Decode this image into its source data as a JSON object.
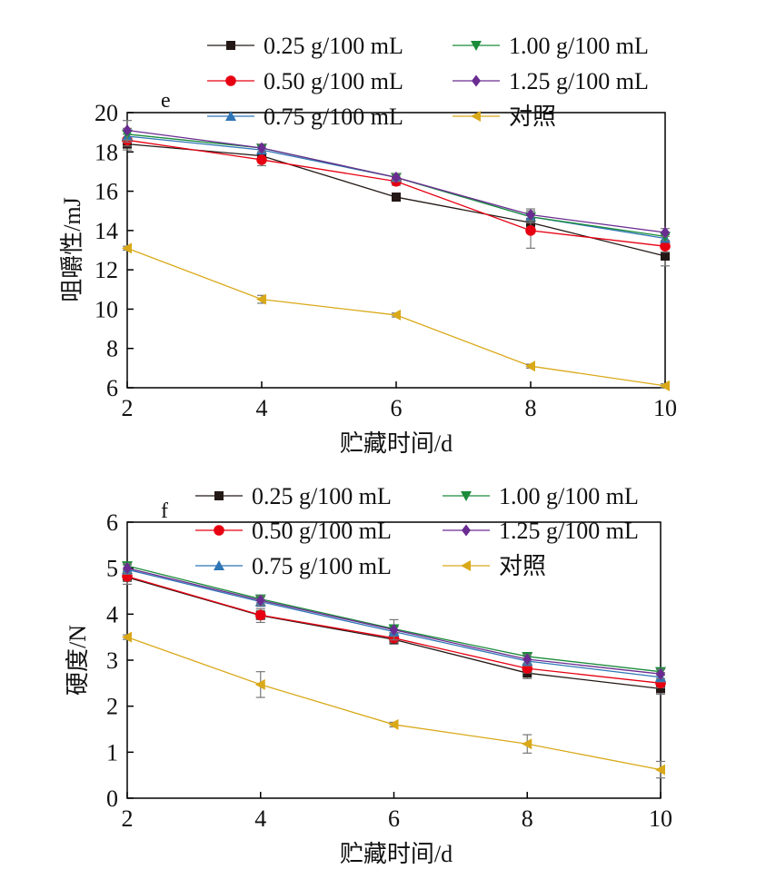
{
  "chart_data": [
    {
      "type": "line",
      "panel_letter": "e",
      "xlabel": "贮藏时间/d",
      "ylabel": "咀嚼性/mJ",
      "x": [
        2,
        4,
        6,
        8,
        10
      ],
      "xlim": [
        2,
        10
      ],
      "ylim": [
        6,
        20
      ],
      "yticks": [
        6,
        8,
        10,
        12,
        14,
        16,
        18,
        20
      ],
      "xticks": [
        2,
        4,
        6,
        8,
        10
      ],
      "grid": false,
      "legend": "top",
      "series": [
        {
          "name": "0.25 g/100 mL",
          "color": "#231815",
          "marker": "square",
          "values": [
            18.4,
            17.8,
            15.7,
            14.4,
            12.7
          ],
          "errors": [
            0.3,
            0.2,
            0.2,
            0.4,
            0.5
          ]
        },
        {
          "name": "0.50 g/100 mL",
          "color": "#e60012",
          "marker": "circle",
          "values": [
            18.6,
            17.6,
            16.5,
            14.0,
            13.2
          ],
          "errors": [
            0.3,
            0.3,
            0.2,
            0.9,
            0.3
          ]
        },
        {
          "name": "0.75 g/100 mL",
          "color": "#2e75b6",
          "marker": "triangle-up",
          "values": [
            18.8,
            18.1,
            16.7,
            14.7,
            13.6
          ],
          "errors": [
            0.3,
            0.2,
            0.2,
            0.3,
            0.2
          ]
        },
        {
          "name": "1.00 g/100 mL",
          "color": "#1a8c3a",
          "marker": "triangle-down",
          "values": [
            18.9,
            18.2,
            16.7,
            14.7,
            13.7
          ],
          "errors": [
            0.3,
            0.2,
            0.2,
            0.3,
            0.2
          ]
        },
        {
          "name": "1.25 g/100 mL",
          "color": "#6a2c91",
          "marker": "diamond",
          "values": [
            19.1,
            18.2,
            16.7,
            14.8,
            13.9
          ],
          "errors": [
            0.5,
            0.2,
            0.2,
            0.3,
            0.2
          ]
        },
        {
          "name": "对照",
          "color": "#d9a919",
          "marker": "triangle-left",
          "values": [
            13.1,
            10.5,
            9.7,
            7.1,
            6.1
          ],
          "errors": [
            0.1,
            0.2,
            0.1,
            0.1,
            0.1
          ]
        }
      ]
    },
    {
      "type": "line",
      "panel_letter": "f",
      "xlabel": "贮藏时间/d",
      "ylabel": "硬度/N",
      "x": [
        2,
        4,
        6,
        8,
        10
      ],
      "xlim": [
        2,
        10
      ],
      "ylim": [
        0,
        6
      ],
      "yticks": [
        0,
        1,
        2,
        3,
        4,
        5,
        6
      ],
      "xticks": [
        2,
        4,
        6,
        8,
        10
      ],
      "grid": false,
      "legend": "top",
      "series": [
        {
          "name": "0.25 g/100 mL",
          "color": "#231815",
          "marker": "square",
          "values": [
            4.8,
            3.97,
            3.45,
            2.72,
            2.38
          ],
          "errors": [
            0.15,
            0.15,
            0.1,
            0.12,
            0.12
          ]
        },
        {
          "name": "0.50 g/100 mL",
          "color": "#e60012",
          "marker": "circle",
          "values": [
            4.82,
            3.98,
            3.48,
            2.82,
            2.5
          ],
          "errors": [
            0.1,
            0.1,
            0.1,
            0.1,
            0.1
          ]
        },
        {
          "name": "0.75 g/100 mL",
          "color": "#2e75b6",
          "marker": "triangle-up",
          "values": [
            4.97,
            4.27,
            3.62,
            2.98,
            2.63
          ],
          "errors": [
            0.1,
            0.1,
            0.1,
            0.1,
            0.1
          ]
        },
        {
          "name": "1.00 g/100 mL",
          "color": "#1a8c3a",
          "marker": "triangle-down",
          "values": [
            5.05,
            4.33,
            3.68,
            3.08,
            2.75
          ],
          "errors": [
            0.08,
            0.08,
            0.08,
            0.08,
            0.08
          ]
        },
        {
          "name": "1.25 g/100 mL",
          "color": "#6a2c91",
          "marker": "diamond",
          "values": [
            5.0,
            4.3,
            3.66,
            3.02,
            2.7
          ],
          "errors": [
            0.1,
            0.1,
            0.22,
            0.1,
            0.1
          ]
        },
        {
          "name": "对照",
          "color": "#d9a919",
          "marker": "triangle-left",
          "values": [
            3.5,
            2.47,
            1.6,
            1.18,
            0.62
          ],
          "errors": [
            0.05,
            0.28,
            0.05,
            0.2,
            0.18
          ]
        }
      ]
    }
  ]
}
